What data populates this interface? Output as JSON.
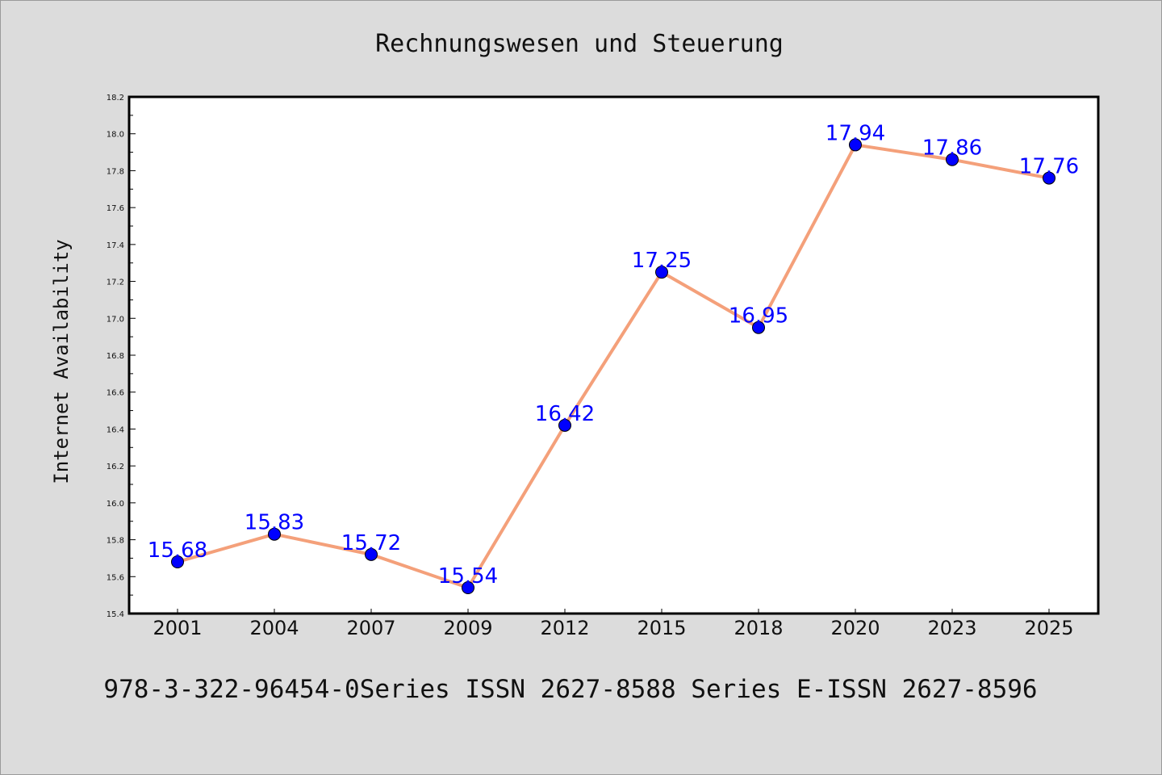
{
  "title": "Rechnungswesen und Steuerung",
  "footer": "978-3-322-96454-0Series ISSN 2627-8588 Series E-ISSN 2627-8596",
  "colors": {
    "background": "#dcdcdc",
    "plot_background": "#ffffff",
    "line": "#f4a07a",
    "marker": "#0000ff",
    "data_label": "#0000ff"
  },
  "chart_data": {
    "type": "line",
    "ylabel": "Internet Availability",
    "xlabel": "",
    "categories": [
      "2001",
      "2004",
      "2007",
      "2009",
      "2012",
      "2015",
      "2018",
      "2020",
      "2023",
      "2025"
    ],
    "series": [
      {
        "values": [
          15.68,
          15.83,
          15.72,
          15.54,
          16.42,
          17.25,
          16.95,
          17.94,
          17.86,
          17.76
        ],
        "labels": [
          "15.68",
          "15.83",
          "15.72",
          "15.54",
          "16.42",
          "17.25",
          "16.95",
          "17.94",
          "17.86",
          "17.76"
        ]
      }
    ],
    "ylim": [
      15.4,
      18.2
    ],
    "yticks": [
      "15.4",
      "15.6",
      "15.8",
      "16.0",
      "16.2",
      "16.4",
      "16.6",
      "16.8",
      "17.0",
      "17.2",
      "17.4",
      "17.6",
      "17.8",
      "18.0",
      "18.2"
    ],
    "grid": false,
    "legend": "none"
  }
}
